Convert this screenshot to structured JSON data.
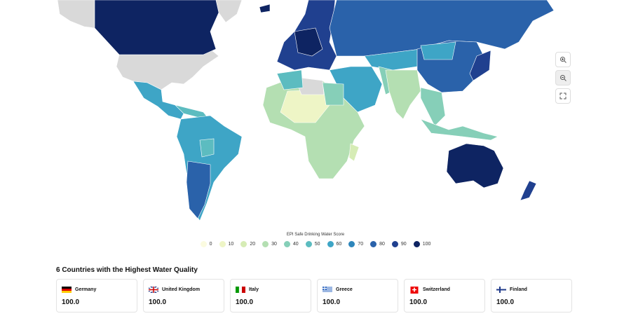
{
  "legend": {
    "title": "EPI Safe Drinking Water Score",
    "items": [
      {
        "label": 0,
        "color": "#fbfbe0"
      },
      {
        "label": 10,
        "color": "#eef5c6"
      },
      {
        "label": 20,
        "color": "#d6ecb5"
      },
      {
        "label": 30,
        "color": "#b4dfb2"
      },
      {
        "label": 40,
        "color": "#86cfb8"
      },
      {
        "label": 50,
        "color": "#5cbcc0"
      },
      {
        "label": 60,
        "color": "#3ea5c6"
      },
      {
        "label": 70,
        "color": "#2e86bb"
      },
      {
        "label": 80,
        "color": "#2a62aa"
      },
      {
        "label": 90,
        "color": "#20408f"
      },
      {
        "label": 100,
        "color": "#0e2462"
      }
    ]
  },
  "top": {
    "heading": "6 Countries with the Highest Water Quality",
    "cards": [
      {
        "name": "Germany",
        "value": "100.0"
      },
      {
        "name": "United Kingdom",
        "value": "100.0"
      },
      {
        "name": "Italy",
        "value": "100.0"
      },
      {
        "name": "Greece",
        "value": "100.0"
      },
      {
        "name": "Switzerland",
        "value": "100.0"
      },
      {
        "name": "Finland",
        "value": "100.0"
      }
    ]
  }
}
